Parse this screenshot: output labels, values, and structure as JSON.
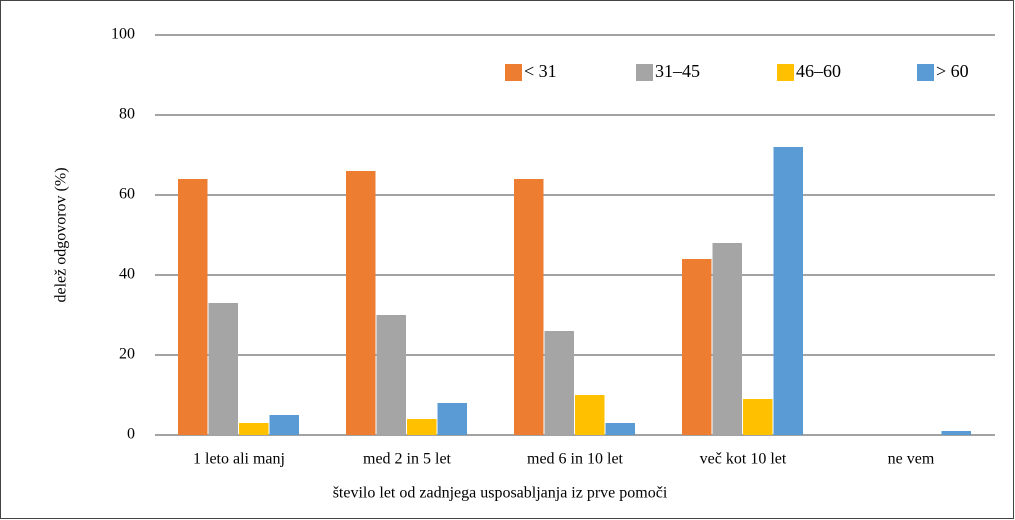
{
  "chart_data": {
    "type": "bar",
    "categories": [
      "1 leto ali manj",
      "med 2 in 5 let",
      "med 6 in 10 let",
      "več kot 10 let",
      "ne vem"
    ],
    "series": [
      {
        "name": "< 31",
        "color": "#ed7d31",
        "values": [
          64,
          66,
          64,
          44,
          0
        ]
      },
      {
        "name": "31–45",
        "color": "#a5a5a5",
        "values": [
          33,
          30,
          26,
          48,
          0
        ]
      },
      {
        "name": "46–60",
        "color": "#ffc000",
        "values": [
          3,
          4,
          10,
          9,
          0
        ]
      },
      {
        "name": "> 60",
        "color": "#5b9bd5",
        "values": [
          5,
          8,
          3,
          72,
          1
        ]
      }
    ],
    "xlabel": "število let od zadnjega usposabljanja iz prve pomoči",
    "ylabel": "delež odgovorov  (%)",
    "ylim": [
      0,
      100
    ],
    "yticks": [
      0,
      20,
      40,
      60,
      80,
      100
    ],
    "grid": true,
    "legend": "upper right"
  }
}
